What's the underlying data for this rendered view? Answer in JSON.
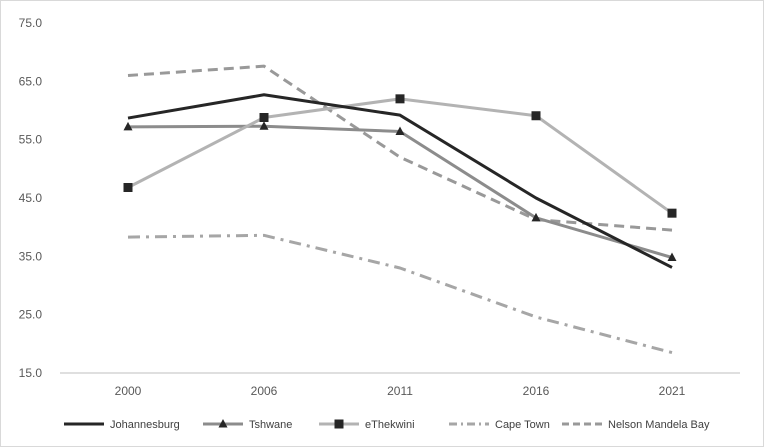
{
  "chart_data": {
    "type": "line",
    "title": "",
    "xlabel": "",
    "ylabel": "",
    "categories": [
      "2000",
      "2006",
      "2011",
      "2016",
      "2021"
    ],
    "ylim": [
      15.0,
      75.0
    ],
    "yticks": [
      "15.0",
      "25.0",
      "35.0",
      "45.0",
      "55.0",
      "65.0",
      "75.0"
    ],
    "grid": false,
    "legend_position": "bottom",
    "series": [
      {
        "name": "Johannesburg",
        "values": [
          58.7,
          62.7,
          59.2,
          45.0,
          33.1
        ],
        "color": "#262626",
        "dash": "solid",
        "marker": "none",
        "width": 3
      },
      {
        "name": "Tshwane",
        "values": [
          57.2,
          57.3,
          56.4,
          41.6,
          34.8
        ],
        "color": "#8c8c8c",
        "dash": "solid",
        "marker": "triangle",
        "width": 3
      },
      {
        "name": "eThekwini",
        "values": [
          46.8,
          58.8,
          62.0,
          59.1,
          42.4
        ],
        "color": "#b3b3b3",
        "dash": "solid",
        "marker": "square",
        "width": 3
      },
      {
        "name": "Cape Town",
        "values": [
          38.3,
          38.6,
          33.0,
          24.6,
          18.5
        ],
        "color": "#a6a6a6",
        "dash": "dashdot",
        "marker": "none",
        "width": 3
      },
      {
        "name": "Nelson Mandela Bay",
        "values": [
          66.0,
          67.6,
          52.0,
          41.3,
          39.5
        ],
        "color": "#999999",
        "dash": "dashed",
        "marker": "none",
        "width": 3
      }
    ]
  }
}
